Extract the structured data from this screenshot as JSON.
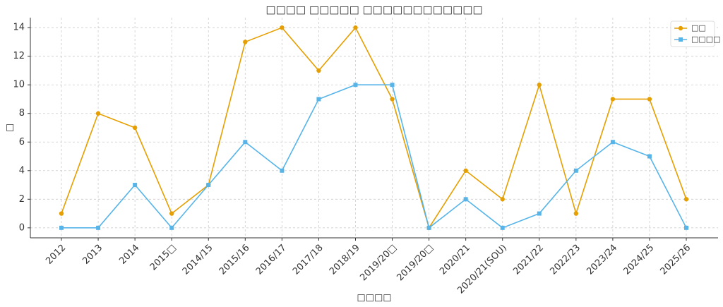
{
  "chart_data": {
    "type": "line",
    "title": "□□□□ □□□□□ □□□□□□□□□□□□",
    "x_label": "□□□□",
    "y_label": "□",
    "categories": [
      "2012",
      "2013",
      "2014",
      "2015□",
      "2014/15",
      "2015/16",
      "2016/17",
      "2017/18",
      "2018/19",
      "2019/20□",
      "2019/20□",
      "2020/21",
      "2020/21(SOU)",
      "2021/22",
      "2022/23",
      "2023/24",
      "2024/25",
      "2025/26"
    ],
    "series": [
      {
        "name": "□□",
        "color": "#e69f00",
        "marker": "circle",
        "values": [
          1,
          8,
          7,
          1,
          3,
          13,
          14,
          11,
          14,
          9,
          0,
          4,
          2,
          10,
          1,
          9,
          9,
          2
        ]
      },
      {
        "name": "□□□□",
        "color": "#56b4e9",
        "marker": "square",
        "values": [
          0,
          0,
          3,
          0,
          3,
          6,
          4,
          9,
          10,
          10,
          0,
          2,
          0,
          1,
          4,
          6,
          5,
          0
        ]
      }
    ],
    "ylim": [
      -0.7,
      14.7
    ],
    "yticks": [
      0,
      2,
      4,
      6,
      8,
      10,
      12,
      14
    ],
    "grid": true,
    "legend": "upper-right"
  }
}
